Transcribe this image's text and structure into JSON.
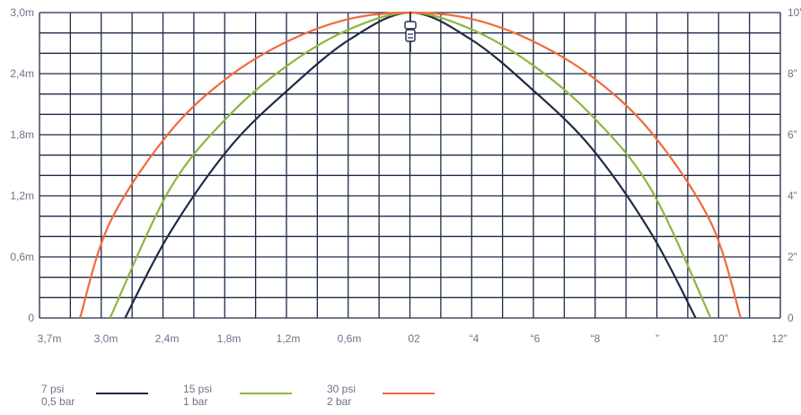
{
  "chart_data": {
    "type": "line",
    "title": "",
    "xlabel": "",
    "ylabel": "",
    "x_tick_labels": [
      "3,7m",
      "3,0m",
      "2,4m",
      "1,8m",
      "1,2m",
      "0,6m",
      "02",
      "“4",
      "“6",
      "“8",
      "”",
      "10”",
      "12”"
    ],
    "y_left_tick_labels": [
      "0",
      "0,6m",
      "1,2m",
      "1,8m",
      "2,4m",
      "3,0m"
    ],
    "y_right_tick_labels": [
      "0",
      "2”",
      "4”",
      "6”",
      "8”",
      "10”"
    ],
    "xlim": [
      -3.7,
      3.7
    ],
    "ylim": [
      0,
      3.0
    ],
    "grid": true,
    "legend_position": "bottom",
    "series": [
      {
        "psi": "7 psi",
        "bar": "0,5 bar",
        "color": "#1f2a47",
        "x": [
          -2.85,
          -2.4,
          -1.8,
          -1.2,
          -0.6,
          0,
          0.6,
          1.2,
          1.8,
          2.4,
          2.85
        ],
        "y": [
          0,
          0.84,
          1.68,
          2.26,
          2.74,
          3.0,
          2.74,
          2.26,
          1.68,
          0.84,
          0
        ]
      },
      {
        "psi": "15 psi",
        "bar": "1 bar",
        "color": "#8db63f",
        "x": [
          -3.0,
          -2.4,
          -1.8,
          -1.2,
          -0.6,
          0,
          0.6,
          1.2,
          1.8,
          2.4,
          3.0
        ],
        "y": [
          0,
          1.27,
          2.0,
          2.5,
          2.84,
          3.0,
          2.84,
          2.5,
          2.0,
          1.27,
          0
        ]
      },
      {
        "psi": "30 psi",
        "bar": "2 bar",
        "color": "#f26a3a",
        "x": [
          -3.3,
          -3.0,
          -2.4,
          -1.8,
          -1.2,
          -0.6,
          0,
          0.6,
          1.2,
          1.8,
          2.4,
          3.0,
          3.3
        ],
        "y": [
          0,
          0.94,
          1.83,
          2.38,
          2.73,
          2.94,
          3.0,
          2.94,
          2.73,
          2.38,
          1.83,
          0.94,
          0
        ]
      }
    ]
  }
}
